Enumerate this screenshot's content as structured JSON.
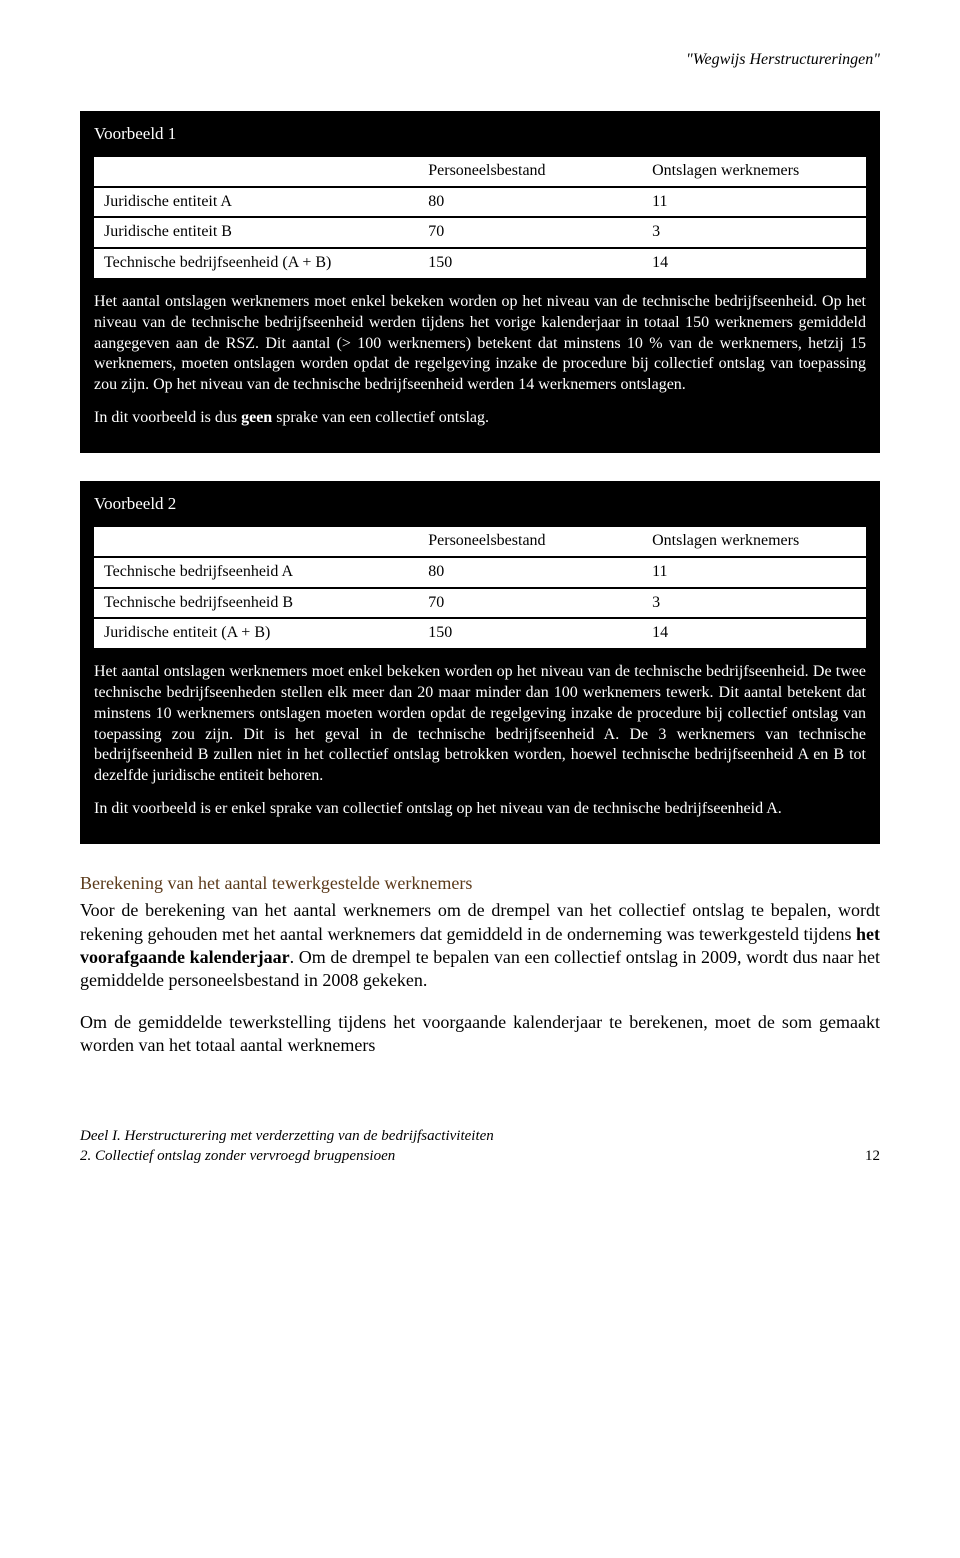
{
  "header": {
    "title": "\"Wegwijs Herstructureringen\""
  },
  "example1": {
    "title": "Voorbeeld 1",
    "columns": [
      "",
      "Personeelsbestand",
      "Ontslagen werknemers"
    ],
    "rows": [
      [
        "Juridische entiteit A",
        "80",
        "11"
      ],
      [
        "Juridische entiteit B",
        "70",
        "3"
      ],
      [
        "Technische bedrijfseenheid (A + B)",
        "150",
        "14"
      ]
    ],
    "para1": "Het aantal ontslagen werknemers moet enkel bekeken worden op het niveau van de technische bedrijfseenheid. Op het niveau van de technische bedrijfseenheid werden tijdens het vorige kalenderjaar in totaal 150 werknemers gemiddeld aangegeven aan de RSZ. Dit aantal (> 100 werknemers) betekent dat minstens 10 % van de werknemers, hetzij 15 werknemers, moeten ontslagen worden opdat de regelgeving inzake de procedure bij collectief ontslag van toepassing zou zijn. Op het niveau van de technische bedrijfseenheid werden 14 werknemers ontslagen.",
    "para2_pre": "In dit voorbeeld is dus ",
    "para2_bold": "geen",
    "para2_post": " sprake van een collectief ontslag."
  },
  "example2": {
    "title": "Voorbeeld 2",
    "columns": [
      "",
      "Personeelsbestand",
      "Ontslagen werknemers"
    ],
    "rows": [
      [
        "Technische bedrijfseenheid A",
        "80",
        "11"
      ],
      [
        "Technische bedrijfseenheid B",
        "70",
        "3"
      ],
      [
        "Juridische entiteit (A + B)",
        "150",
        "14"
      ]
    ],
    "para1": "Het aantal ontslagen werknemers moet enkel bekeken worden op het niveau van de technische bedrijfseenheid. De twee technische bedrijfseenheden stellen elk meer dan 20 maar minder dan 100 werknemers tewerk. Dit aantal betekent dat minstens 10 werknemers ontslagen moeten worden opdat de regelgeving inzake de procedure bij collectief ontslag van toepassing zou zijn. Dit is het geval in de technische bedrijfseenheid A. De 3 werknemers van technische bedrijfseenheid B zullen niet in het collectief ontslag betrokken worden, hoewel technische bedrijfseenheid A en B tot dezelfde juridische entiteit behoren.",
    "para2": "In dit voorbeeld is er enkel sprake van collectief ontslag op het niveau van de technische bedrijfseenheid A."
  },
  "section": {
    "heading": "Berekening van het aantal tewerkgestelde werknemers",
    "para1_pre": "Voor de berekening van het aantal werknemers om de drempel van het collectief ontslag te bepalen, wordt rekening gehouden met het aantal werknemers dat gemiddeld in de onderneming was tewerkgesteld tijdens ",
    "para1_bold": "het voorafgaande kalenderjaar",
    "para1_post": ". Om de drempel te bepalen van een collectief ontslag in 2009, wordt dus naar het gemiddelde personeelsbestand in 2008 gekeken.",
    "para2": "Om de gemiddelde tewerkstelling tijdens het voorgaande kalenderjaar te berekenen, moet de som gemaakt worden van het totaal aantal werknemers"
  },
  "footer": {
    "line1": "Deel I. Herstructurering met verderzetting van de bedrijfsactiviteiten",
    "line2": "2. Collectief ontslag zonder vervroegd brugpensioen",
    "page": "12"
  }
}
